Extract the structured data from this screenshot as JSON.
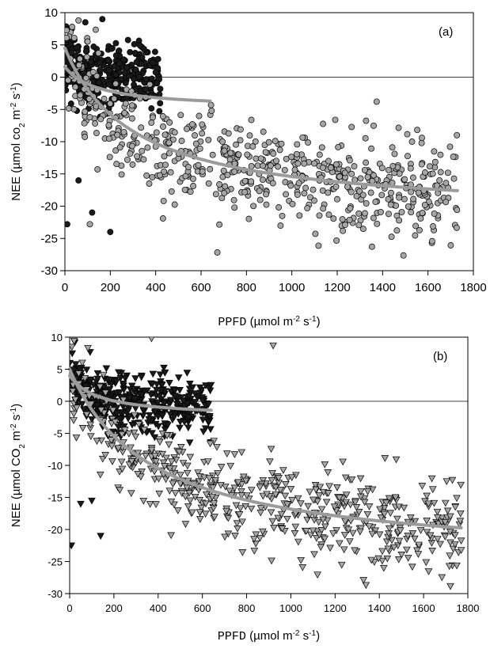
{
  "chart_data": [
    {
      "type": "scatter",
      "panel_label": "(a)",
      "xlabel": {
        "main": "PPFD",
        "unit": "(µmol m",
        "exp1": "-2",
        "mid": " s",
        "exp2": "-1",
        "end": ")"
      },
      "ylabel": {
        "main": "NEE (µmol co",
        "sub": "2",
        "mid": " m",
        "exp1": "-2",
        "mid2": " s",
        "exp2": "-1",
        "end": ")"
      },
      "xlim": [
        0,
        1800
      ],
      "ylim": [
        -30,
        10
      ],
      "xticks": [
        0,
        200,
        400,
        600,
        800,
        1000,
        1200,
        1400,
        1600,
        1800
      ],
      "yticks": [
        -30,
        -25,
        -20,
        -15,
        -10,
        -5,
        0,
        5,
        10
      ],
      "zero_line": true,
      "marker": "circle",
      "series": [
        {
          "color": "#1a1a1a",
          "seed": 11,
          "count": 340,
          "x_range": [
            0,
            420
          ],
          "model": {
            "amax": 3.5,
            "alpha": 0.06,
            "resp": 3.0
          },
          "spread": 2.6,
          "outliers": [
            [
              10,
              -22.8
            ],
            [
              120,
              -21
            ],
            [
              200,
              -24
            ],
            [
              60,
              -16
            ],
            [
              90,
              8.5
            ],
            [
              165,
              9
            ],
            [
              30,
              7.5
            ]
          ],
          "fit": {
            "model": {
              "amax": 6.5,
              "alpha": 0.045,
              "resp": 1.6
            },
            "x_max": 640
          }
        },
        {
          "color": "#a6a6a6",
          "seed": 23,
          "count": 620,
          "x_range": [
            0,
            1730
          ],
          "model": {
            "amax": 26,
            "alpha": 0.085,
            "resp": 4.5
          },
          "spread": 3.8,
          "outliers": [
            [
              110,
              -22.8
            ],
            [
              60,
              8.8
            ]
          ],
          "fit": {
            "model": {
              "amax": 26,
              "alpha": 0.085,
              "resp": 4.5
            },
            "x_max": 1730
          }
        }
      ]
    },
    {
      "type": "scatter",
      "panel_label": "(b)",
      "xlabel": {
        "main": "PPFD",
        "unit": "(µmol m",
        "exp1": "-2",
        "mid": " s",
        "exp2": "-1",
        "end": ")"
      },
      "ylabel": {
        "main": "NEE (µmol CO",
        "sub": "2",
        "mid": " m",
        "exp1": "-2",
        "mid2": " s",
        "exp2": "-1",
        "end": ")"
      },
      "xlim": [
        0,
        1800
      ],
      "ylim": [
        -30,
        10
      ],
      "xticks": [
        0,
        200,
        400,
        600,
        800,
        1000,
        1200,
        1400,
        1600,
        1800
      ],
      "yticks": [
        -30,
        -25,
        -20,
        -15,
        -10,
        -5,
        0,
        5,
        10
      ],
      "zero_line": true,
      "marker": "triangle-down",
      "series": [
        {
          "color": "#1a1a1a",
          "seed": 37,
          "count": 420,
          "x_range": [
            0,
            640
          ],
          "model": {
            "amax": 5.5,
            "alpha": 0.05,
            "resp": 3.5
          },
          "spread": 2.2,
          "outliers": [
            [
              8,
              -22.5
            ],
            [
              50,
              -16
            ],
            [
              140,
              -21
            ],
            [
              100,
              -15.5
            ],
            [
              430,
              4.5
            ]
          ],
          "fit": {
            "model": {
              "amax": 6.5,
              "alpha": 0.05,
              "resp": 4.0
            },
            "x_max": 640
          }
        },
        {
          "color": "#a6a6a6",
          "seed": 53,
          "count": 560,
          "x_range": [
            0,
            1770
          ],
          "model": {
            "amax": 30,
            "alpha": 0.08,
            "resp": 5.0
          },
          "spread": 3.6,
          "outliers": [
            [
              370,
              9.8
            ],
            [
              920,
              8.7
            ],
            [
              1420,
              -26
            ],
            [
              1770,
              -23.2
            ],
            [
              1230,
              -25.5
            ]
          ],
          "fit": {
            "model": {
              "amax": 30,
              "alpha": 0.08,
              "resp": 5.0
            },
            "x_max": 1770
          }
        }
      ]
    }
  ]
}
